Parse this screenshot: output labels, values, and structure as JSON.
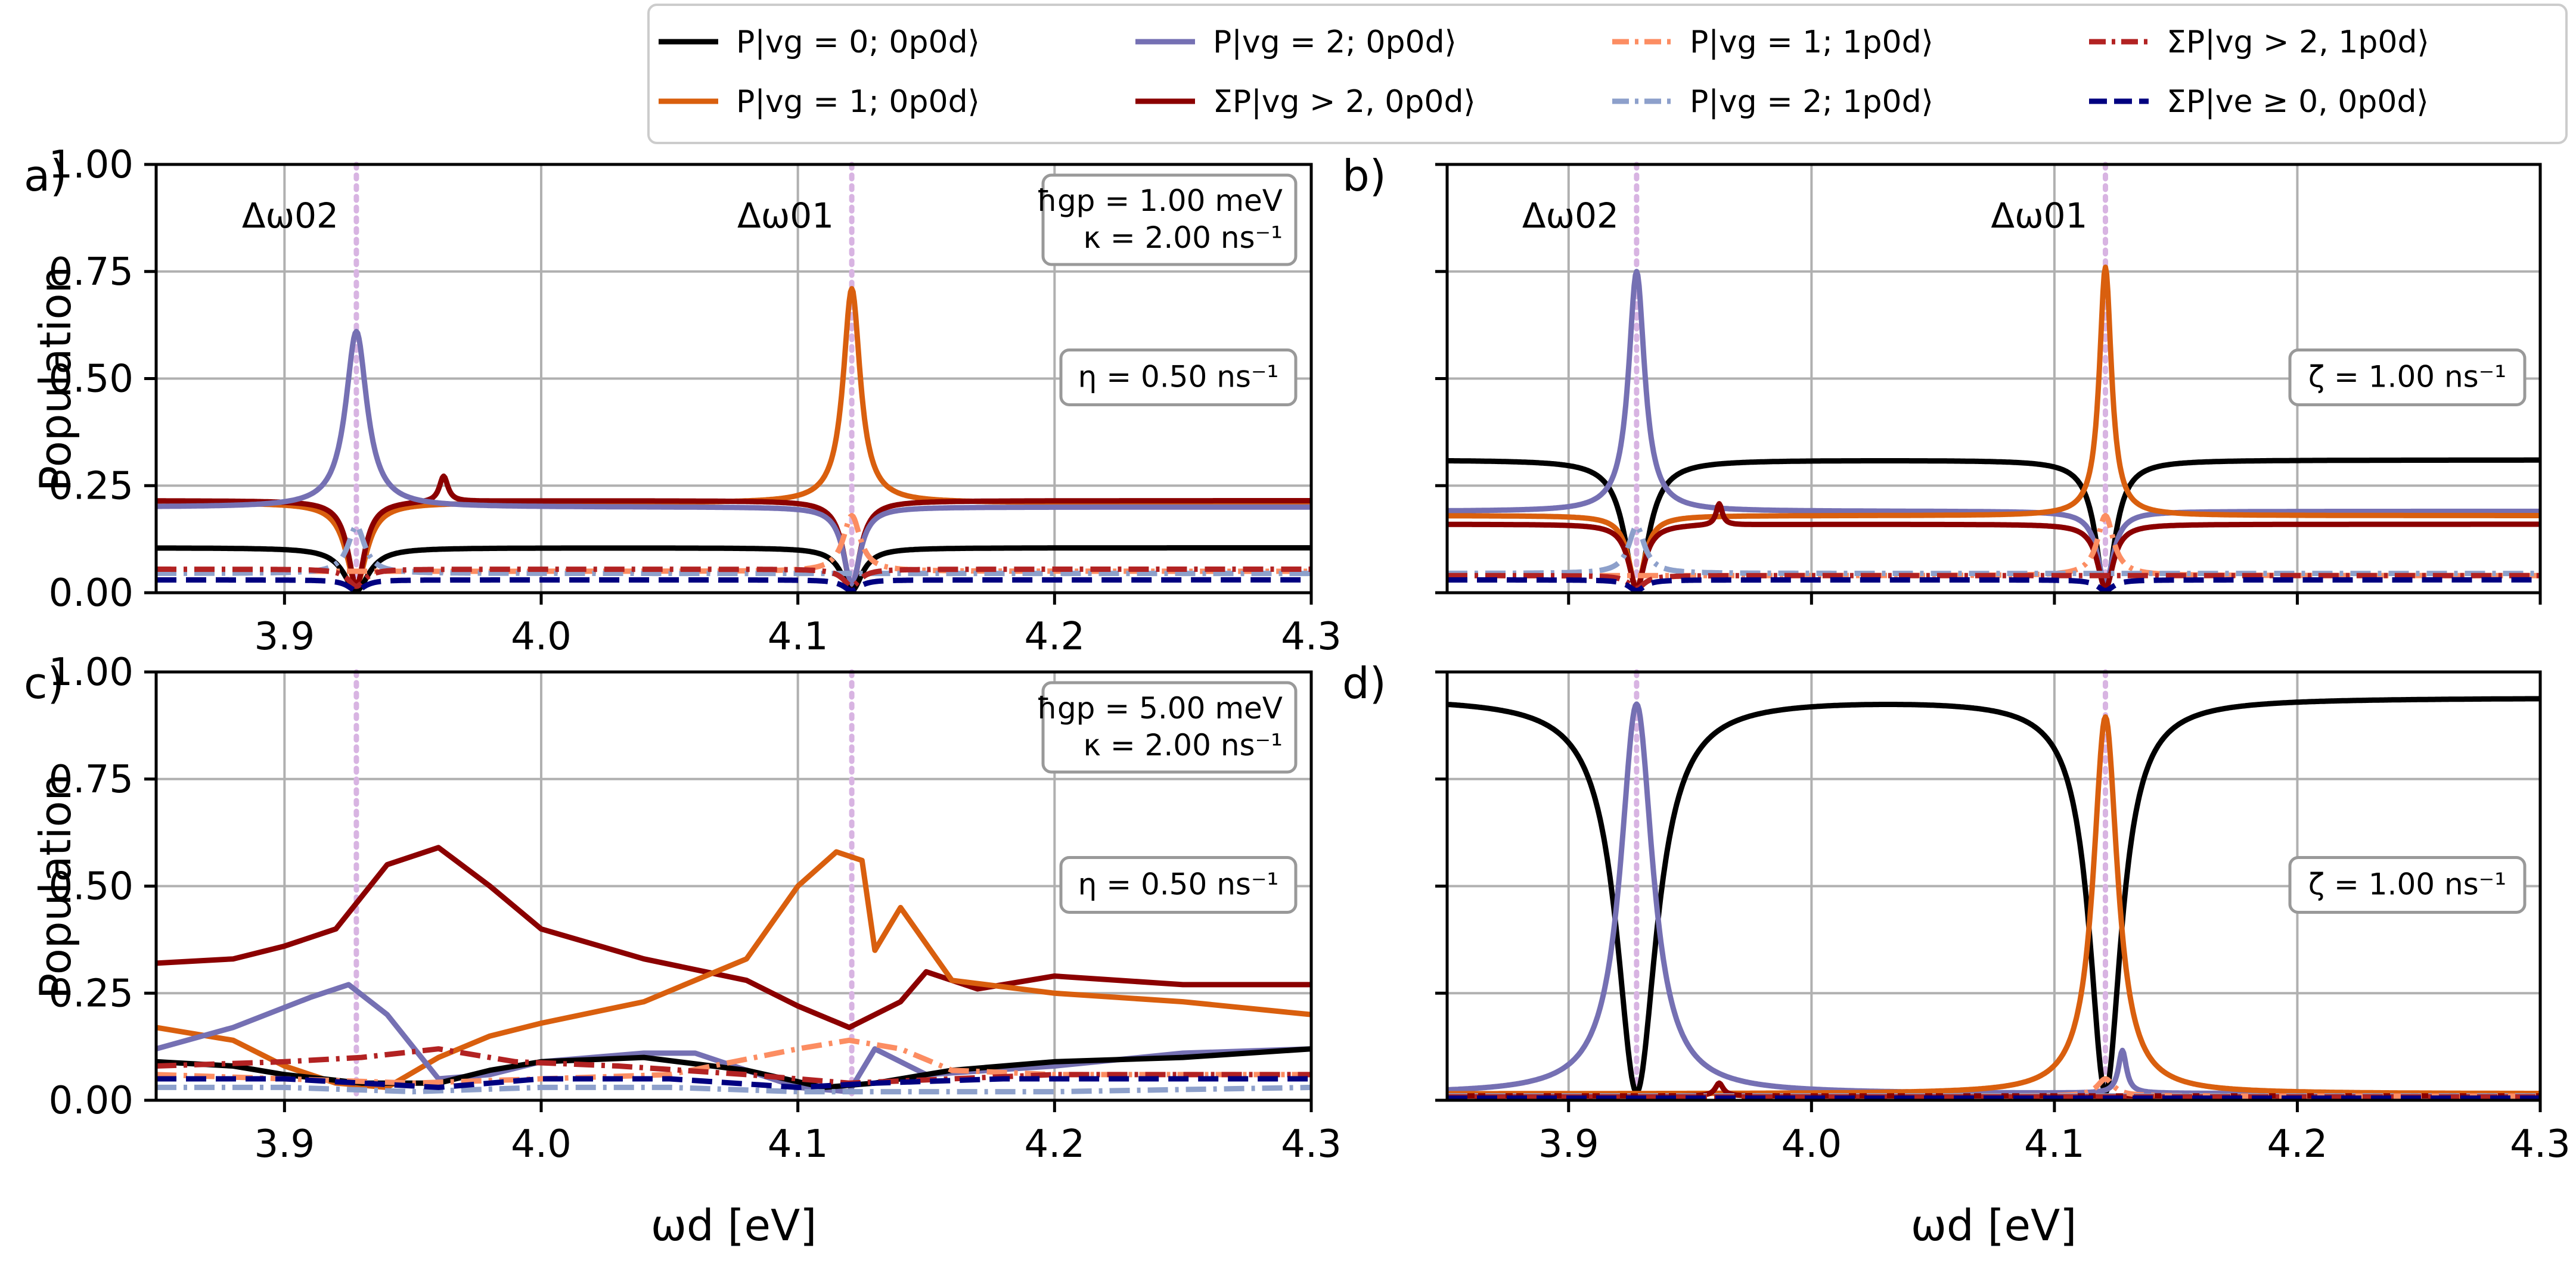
{
  "figure": {
    "xlabel": "ωd [eV]",
    "ylabel": "Population",
    "vline_colour": "#d8b4e2",
    "resonances": [
      3.928,
      4.121
    ],
    "resonance_labels": [
      "Δω02",
      "Δω01"
    ]
  },
  "legend": [
    {
      "label": "P|vg = 0; 0p0d⟩",
      "color": "#000000",
      "dash": "solid"
    },
    {
      "label": "P|vg = 1; 0p0d⟩",
      "color": "#d95f0e",
      "dash": "solid"
    },
    {
      "label": "P|vg = 2; 0p0d⟩",
      "color": "#7570b3",
      "dash": "solid"
    },
    {
      "label": "ΣP|vg > 2, 0p0d⟩",
      "color": "#8b0000",
      "dash": "solid"
    },
    {
      "label": "P|vg = 1; 1p0d⟩",
      "color": "#fc8d62",
      "dash": "dashdot"
    },
    {
      "label": "P|vg = 2; 1p0d⟩",
      "color": "#8da0cb",
      "dash": "dashdot"
    },
    {
      "label": "ΣP|vg > 2, 1p0d⟩",
      "color": "#b22222",
      "dash": "dashdot"
    },
    {
      "label": "ΣP|ve ≥ 0, 0p0d⟩",
      "color": "#000080",
      "dash": "dashed"
    }
  ],
  "chart_data": [
    {
      "panel": "a)",
      "type": "line",
      "xlim": [
        3.85,
        4.3
      ],
      "ylim": [
        0,
        1.0
      ],
      "xticks": [
        "3.9",
        "4.0",
        "4.1",
        "4.2",
        "4.3"
      ],
      "yticks": [
        "0.00",
        "0.25",
        "0.50",
        "0.75",
        "1.00"
      ],
      "params": [
        "ħgp = 1.00 meV",
        "κ = 2.00 ns⁻¹"
      ],
      "rate": "η = 0.50 ns⁻¹",
      "show_resonance_labels": true,
      "series": [
        {
          "name": "P|vg=1;0p0d⟩",
          "base": 0.21,
          "features": [
            {
              "x": 3.928,
              "depth": 0.19,
              "w": 0.005
            },
            {
              "x": 4.121,
              "amp": 0.5,
              "w": 0.004
            }
          ]
        },
        {
          "name": "ΣP|vg>2,0p0d⟩",
          "base": 0.215,
          "features": [
            {
              "x": 3.928,
              "depth": 0.2,
              "w": 0.004
            },
            {
              "x": 4.121,
              "depth": 0.2,
              "w": 0.004
            },
            {
              "x": 3.962,
              "amp": 0.06,
              "w": 0.002
            }
          ]
        },
        {
          "name": "P|vg=2;0p0d⟩",
          "base": 0.2,
          "features": [
            {
              "x": 3.928,
              "amp": 0.41,
              "w": 0.005
            },
            {
              "x": 4.121,
              "depth": 0.18,
              "w": 0.004
            }
          ]
        },
        {
          "name": "P|vg=0;0p0d⟩",
          "base": 0.105,
          "features": [
            {
              "x": 3.928,
              "depth": 0.1,
              "w": 0.006
            },
            {
              "x": 4.121,
              "depth": 0.1,
              "w": 0.005
            }
          ]
        },
        {
          "name": "P|vg=1;1p0d⟩",
          "base": 0.05,
          "features": [
            {
              "x": 4.121,
              "amp": 0.13,
              "w": 0.004
            }
          ]
        },
        {
          "name": "P|vg=2;1p0d⟩",
          "base": 0.045,
          "features": [
            {
              "x": 3.928,
              "amp": 0.11,
              "w": 0.004
            }
          ]
        },
        {
          "name": "ΣP|vg>2,1p0d⟩",
          "base": 0.055,
          "features": [
            {
              "x": 3.928,
              "depth": 0.04,
              "w": 0.004
            },
            {
              "x": 4.121,
              "depth": 0.04,
              "w": 0.004
            }
          ]
        },
        {
          "name": "ΣP|ve≥0,0p0d⟩",
          "base": 0.03,
          "features": [
            {
              "x": 3.928,
              "depth": 0.025,
              "w": 0.004
            },
            {
              "x": 4.121,
              "depth": 0.025,
              "w": 0.004
            }
          ]
        }
      ]
    },
    {
      "panel": "b)",
      "type": "line",
      "xlim": [
        3.85,
        4.3
      ],
      "ylim": [
        0,
        1.0
      ],
      "xticks": [],
      "yticks": [],
      "params": [],
      "rate": "ζ = 1.00 ns⁻¹",
      "show_resonance_labels": true,
      "series": [
        {
          "name": "P|vg=0;0p0d⟩",
          "base": 0.31,
          "features": [
            {
              "x": 3.928,
              "depth": 0.3,
              "w": 0.006
            },
            {
              "x": 4.121,
              "depth": 0.3,
              "w": 0.005
            }
          ]
        },
        {
          "name": "P|vg=2;0p0d⟩",
          "base": 0.19,
          "features": [
            {
              "x": 3.928,
              "amp": 0.56,
              "w": 0.004
            },
            {
              "x": 4.121,
              "depth": 0.17,
              "w": 0.004
            }
          ]
        },
        {
          "name": "P|vg=1;0p0d⟩",
          "base": 0.18,
          "features": [
            {
              "x": 3.928,
              "depth": 0.17,
              "w": 0.004
            },
            {
              "x": 4.121,
              "amp": 0.58,
              "w": 0.003
            }
          ]
        },
        {
          "name": "ΣP|vg>2,0p0d⟩",
          "base": 0.16,
          "features": [
            {
              "x": 3.928,
              "depth": 0.15,
              "w": 0.004
            },
            {
              "x": 4.121,
              "depth": 0.15,
              "w": 0.004
            },
            {
              "x": 3.962,
              "amp": 0.05,
              "w": 0.0015
            }
          ]
        },
        {
          "name": "P|vg=1;1p0d⟩",
          "base": 0.04,
          "features": [
            {
              "x": 4.121,
              "amp": 0.14,
              "w": 0.004
            }
          ]
        },
        {
          "name": "P|vg=2;1p0d⟩",
          "base": 0.045,
          "features": [
            {
              "x": 3.928,
              "amp": 0.11,
              "w": 0.004
            }
          ]
        },
        {
          "name": "ΣP|vg>2,1p0d⟩",
          "base": 0.04,
          "features": [
            {
              "x": 3.928,
              "depth": 0.03,
              "w": 0.004
            }
          ]
        },
        {
          "name": "ΣP|ve≥0,0p0d⟩",
          "base": 0.03,
          "features": [
            {
              "x": 3.928,
              "depth": 0.025,
              "w": 0.004
            },
            {
              "x": 4.121,
              "depth": 0.025,
              "w": 0.004
            }
          ]
        }
      ]
    },
    {
      "panel": "c)",
      "type": "line",
      "xlim": [
        3.85,
        4.3
      ],
      "ylim": [
        0,
        1.0
      ],
      "xticks": [
        "3.9",
        "4.0",
        "4.1",
        "4.2",
        "4.3"
      ],
      "yticks": [
        "0.00",
        "0.25",
        "0.50",
        "0.75",
        "1.00"
      ],
      "params": [
        "ħgp = 5.00 meV",
        "κ = 2.00 ns⁻¹"
      ],
      "rate": "η = 0.50 ns⁻¹",
      "show_resonance_labels": false,
      "series": [
        {
          "name": "ΣP|vg>2,0p0d⟩",
          "points": [
            [
              3.85,
              0.32
            ],
            [
              3.88,
              0.33
            ],
            [
              3.9,
              0.36
            ],
            [
              3.92,
              0.4
            ],
            [
              3.94,
              0.55
            ],
            [
              3.96,
              0.59
            ],
            [
              3.98,
              0.5
            ],
            [
              4.0,
              0.4
            ],
            [
              4.04,
              0.33
            ],
            [
              4.08,
              0.28
            ],
            [
              4.1,
              0.22
            ],
            [
              4.12,
              0.17
            ],
            [
              4.14,
              0.23
            ],
            [
              4.15,
              0.3
            ],
            [
              4.17,
              0.26
            ],
            [
              4.2,
              0.29
            ],
            [
              4.25,
              0.27
            ],
            [
              4.3,
              0.27
            ]
          ]
        },
        {
          "name": "P|vg=1;0p0d⟩",
          "points": [
            [
              3.85,
              0.17
            ],
            [
              3.88,
              0.14
            ],
            [
              3.9,
              0.08
            ],
            [
              3.92,
              0.04
            ],
            [
              3.94,
              0.03
            ],
            [
              3.96,
              0.1
            ],
            [
              3.98,
              0.15
            ],
            [
              4.0,
              0.18
            ],
            [
              4.04,
              0.23
            ],
            [
              4.08,
              0.33
            ],
            [
              4.1,
              0.5
            ],
            [
              4.115,
              0.58
            ],
            [
              4.125,
              0.56
            ],
            [
              4.13,
              0.35
            ],
            [
              4.14,
              0.45
            ],
            [
              4.16,
              0.28
            ],
            [
              4.2,
              0.25
            ],
            [
              4.25,
              0.23
            ],
            [
              4.3,
              0.2
            ]
          ]
        },
        {
          "name": "P|vg=2;0p0d⟩",
          "points": [
            [
              3.85,
              0.12
            ],
            [
              3.88,
              0.17
            ],
            [
              3.91,
              0.24
            ],
            [
              3.925,
              0.27
            ],
            [
              3.94,
              0.2
            ],
            [
              3.96,
              0.05
            ],
            [
              3.98,
              0.06
            ],
            [
              4.0,
              0.09
            ],
            [
              4.04,
              0.11
            ],
            [
              4.06,
              0.11
            ],
            [
              4.08,
              0.07
            ],
            [
              4.1,
              0.03
            ],
            [
              4.12,
              0.02
            ],
            [
              4.13,
              0.12
            ],
            [
              4.15,
              0.06
            ],
            [
              4.2,
              0.08
            ],
            [
              4.25,
              0.11
            ],
            [
              4.3,
              0.12
            ]
          ]
        },
        {
          "name": "P|vg=0;0p0d⟩",
          "points": [
            [
              3.85,
              0.09
            ],
            [
              3.88,
              0.08
            ],
            [
              3.9,
              0.06
            ],
            [
              3.93,
              0.04
            ],
            [
              3.96,
              0.04
            ],
            [
              3.98,
              0.07
            ],
            [
              4.0,
              0.09
            ],
            [
              4.04,
              0.1
            ],
            [
              4.08,
              0.07
            ],
            [
              4.11,
              0.03
            ],
            [
              4.13,
              0.04
            ],
            [
              4.16,
              0.07
            ],
            [
              4.2,
              0.09
            ],
            [
              4.25,
              0.1
            ],
            [
              4.3,
              0.12
            ]
          ]
        },
        {
          "name": "P|vg=1;1p0d⟩",
          "points": [
            [
              3.85,
              0.06
            ],
            [
              3.9,
              0.05
            ],
            [
              3.95,
              0.04
            ],
            [
              4.0,
              0.05
            ],
            [
              4.05,
              0.06
            ],
            [
              4.1,
              0.12
            ],
            [
              4.12,
              0.14
            ],
            [
              4.14,
              0.12
            ],
            [
              4.16,
              0.07
            ],
            [
              4.2,
              0.06
            ],
            [
              4.3,
              0.06
            ]
          ]
        },
        {
          "name": "P|vg=2;1p0d⟩",
          "points": [
            [
              3.85,
              0.03
            ],
            [
              3.9,
              0.03
            ],
            [
              3.95,
              0.02
            ],
            [
              4.0,
              0.03
            ],
            [
              4.05,
              0.03
            ],
            [
              4.1,
              0.02
            ],
            [
              4.15,
              0.02
            ],
            [
              4.2,
              0.02
            ],
            [
              4.3,
              0.03
            ]
          ]
        },
        {
          "name": "ΣP|vg>2,1p0d⟩",
          "points": [
            [
              3.85,
              0.08
            ],
            [
              3.9,
              0.09
            ],
            [
              3.93,
              0.1
            ],
            [
              3.96,
              0.12
            ],
            [
              3.99,
              0.09
            ],
            [
              4.03,
              0.08
            ],
            [
              4.08,
              0.06
            ],
            [
              4.12,
              0.04
            ],
            [
              4.16,
              0.05
            ],
            [
              4.2,
              0.06
            ],
            [
              4.3,
              0.06
            ]
          ]
        },
        {
          "name": "ΣP|ve≥0,0p0d⟩",
          "points": [
            [
              3.85,
              0.05
            ],
            [
              3.9,
              0.05
            ],
            [
              3.93,
              0.04
            ],
            [
              3.96,
              0.03
            ],
            [
              4.0,
              0.05
            ],
            [
              4.05,
              0.05
            ],
            [
              4.1,
              0.03
            ],
            [
              4.13,
              0.04
            ],
            [
              4.18,
              0.05
            ],
            [
              4.25,
              0.05
            ],
            [
              4.3,
              0.05
            ]
          ]
        }
      ]
    },
    {
      "panel": "d)",
      "type": "line",
      "xlim": [
        3.85,
        4.3
      ],
      "ylim": [
        0,
        1.0
      ],
      "xticks": [],
      "yticks": [],
      "params": [],
      "rate": "ζ = 1.00 ns⁻¹",
      "show_resonance_labels": false,
      "series": [
        {
          "name": "P|vg=0;0p0d⟩",
          "base": 0.94,
          "features": [
            {
              "x": 3.928,
              "depth": 0.92,
              "w": 0.01
            },
            {
              "x": 4.121,
              "depth": 0.92,
              "w": 0.008
            }
          ]
        },
        {
          "name": "P|vg=2;0p0d⟩",
          "base": 0.015,
          "features": [
            {
              "x": 3.928,
              "amp": 0.91,
              "w": 0.008
            },
            {
              "x": 4.128,
              "amp": 0.1,
              "w": 0.002
            }
          ]
        },
        {
          "name": "P|vg=1;0p0d⟩",
          "base": 0.015,
          "features": [
            {
              "x": 4.121,
              "amp": 0.88,
              "w": 0.006
            }
          ]
        },
        {
          "name": "ΣP|vg>2,0p0d⟩",
          "base": 0.01,
          "features": [
            {
              "x": 3.962,
              "amp": 0.03,
              "w": 0.002
            }
          ]
        },
        {
          "name": "P|vg=1;1p0d⟩",
          "base": 0.01,
          "features": [
            {
              "x": 4.121,
              "amp": 0.04,
              "w": 0.004
            }
          ]
        },
        {
          "name": "P|vg=2;1p0d⟩",
          "base": 0.01,
          "features": []
        },
        {
          "name": "ΣP|vg>2,1p0d⟩",
          "base": 0.008,
          "features": []
        },
        {
          "name": "ΣP|ve≥0,0p0d⟩",
          "base": 0.005,
          "features": []
        }
      ]
    }
  ]
}
